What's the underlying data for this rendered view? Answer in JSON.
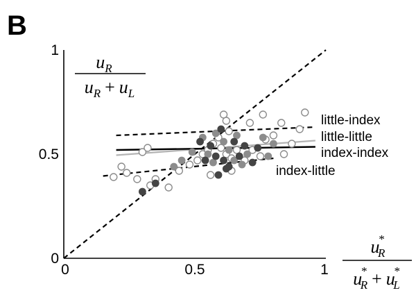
{
  "panel_label": "B",
  "chart_data": {
    "type": "scatter",
    "xlim": [
      0,
      1
    ],
    "ylim": [
      0,
      1
    ],
    "grid": false,
    "xticks": [
      {
        "value": 0,
        "label": "0"
      },
      {
        "value": 0.5,
        "label": "0.5"
      },
      {
        "value": 1,
        "label": "1"
      }
    ],
    "yticks": [
      {
        "value": 0,
        "label": "0"
      },
      {
        "value": 0.5,
        "label": "0.5"
      },
      {
        "value": 1,
        "label": "1"
      }
    ],
    "ylabel": {
      "num_var": "u",
      "num_sub": "R",
      "den_var1": "u",
      "den_sub1": "R",
      "den_op": "+",
      "den_var2": "u",
      "den_sub2": "L"
    },
    "xlabel": {
      "num_var": "u",
      "num_sub": "R",
      "num_sup": "*",
      "den_var1": "u",
      "den_sub1": "R",
      "den_sup1": "*",
      "den_op": "+",
      "den_var2": "u",
      "den_sub2": "L",
      "den_sup2": "*"
    },
    "colors": {
      "filled_dark": "#444444",
      "filled_gray": "#8c8c8c",
      "open_edge": "#8c8c8c",
      "light_line": "#b4b4b4"
    },
    "lines": [
      {
        "id": "identity",
        "style": "dashed",
        "color": "#000000",
        "x": [
          0,
          1
        ],
        "y": [
          0,
          1
        ]
      },
      {
        "id": "little-index",
        "label": "little-index",
        "style": "dashed",
        "color": "#000000",
        "x": [
          0.2,
          0.96
        ],
        "y": [
          0.59,
          0.63
        ]
      },
      {
        "id": "little-little",
        "label": "little-little",
        "style": "solid",
        "color": "#b4b4b4",
        "x": [
          0.2,
          0.96
        ],
        "y": [
          0.495,
          0.565
        ]
      },
      {
        "id": "index-index",
        "label": "index-index",
        "style": "solid",
        "color": "#000000",
        "x": [
          0.2,
          0.96
        ],
        "y": [
          0.52,
          0.535
        ]
      },
      {
        "id": "index-little",
        "label": "index-little",
        "style": "dashed",
        "color": "#000000",
        "x": [
          0.15,
          0.8
        ],
        "y": [
          0.395,
          0.48
        ]
      }
    ],
    "points": [
      {
        "x": 0.61,
        "y": 0.69,
        "kind": "open"
      },
      {
        "x": 0.62,
        "y": 0.66,
        "kind": "open"
      },
      {
        "x": 0.63,
        "y": 0.61,
        "kind": "open"
      },
      {
        "x": 0.71,
        "y": 0.65,
        "kind": "open"
      },
      {
        "x": 0.76,
        "y": 0.69,
        "kind": "open"
      },
      {
        "x": 0.83,
        "y": 0.65,
        "kind": "open"
      },
      {
        "x": 0.9,
        "y": 0.62,
        "kind": "open"
      },
      {
        "x": 0.92,
        "y": 0.7,
        "kind": "open"
      },
      {
        "x": 0.8,
        "y": 0.59,
        "kind": "open"
      },
      {
        "x": 0.77,
        "y": 0.57,
        "kind": "open"
      },
      {
        "x": 0.22,
        "y": 0.44,
        "kind": "open"
      },
      {
        "x": 0.24,
        "y": 0.41,
        "kind": "open"
      },
      {
        "x": 0.19,
        "y": 0.39,
        "kind": "open"
      },
      {
        "x": 0.28,
        "y": 0.38,
        "kind": "open"
      },
      {
        "x": 0.3,
        "y": 0.51,
        "kind": "open"
      },
      {
        "x": 0.32,
        "y": 0.53,
        "kind": "open"
      },
      {
        "x": 0.35,
        "y": 0.38,
        "kind": "open"
      },
      {
        "x": 0.33,
        "y": 0.35,
        "kind": "open"
      },
      {
        "x": 0.4,
        "y": 0.34,
        "kind": "open"
      },
      {
        "x": 0.44,
        "y": 0.42,
        "kind": "open"
      },
      {
        "x": 0.48,
        "y": 0.45,
        "kind": "open"
      },
      {
        "x": 0.51,
        "y": 0.47,
        "kind": "open"
      },
      {
        "x": 0.53,
        "y": 0.5,
        "kind": "open"
      },
      {
        "x": 0.55,
        "y": 0.52,
        "kind": "open"
      },
      {
        "x": 0.57,
        "y": 0.55,
        "kind": "open"
      },
      {
        "x": 0.59,
        "y": 0.58,
        "kind": "open"
      },
      {
        "x": 0.6,
        "y": 0.53,
        "kind": "open"
      },
      {
        "x": 0.62,
        "y": 0.5,
        "kind": "open"
      },
      {
        "x": 0.64,
        "y": 0.48,
        "kind": "open"
      },
      {
        "x": 0.66,
        "y": 0.52,
        "kind": "open"
      },
      {
        "x": 0.69,
        "y": 0.47,
        "kind": "open"
      },
      {
        "x": 0.72,
        "y": 0.52,
        "kind": "open"
      },
      {
        "x": 0.75,
        "y": 0.49,
        "kind": "open"
      },
      {
        "x": 0.84,
        "y": 0.5,
        "kind": "open"
      },
      {
        "x": 0.87,
        "y": 0.55,
        "kind": "open"
      },
      {
        "x": 0.64,
        "y": 0.42,
        "kind": "open"
      },
      {
        "x": 0.56,
        "y": 0.4,
        "kind": "open"
      },
      {
        "x": 0.3,
        "y": 0.32,
        "kind": "filled_dark"
      },
      {
        "x": 0.35,
        "y": 0.36,
        "kind": "filled_dark"
      },
      {
        "x": 0.52,
        "y": 0.56,
        "kind": "filled_dark"
      },
      {
        "x": 0.54,
        "y": 0.47,
        "kind": "filled_dark"
      },
      {
        "x": 0.56,
        "y": 0.54,
        "kind": "filled_dark"
      },
      {
        "x": 0.58,
        "y": 0.49,
        "kind": "filled_dark"
      },
      {
        "x": 0.6,
        "y": 0.62,
        "kind": "filled_dark"
      },
      {
        "x": 0.61,
        "y": 0.47,
        "kind": "filled_dark"
      },
      {
        "x": 0.63,
        "y": 0.44,
        "kind": "filled_dark"
      },
      {
        "x": 0.65,
        "y": 0.56,
        "kind": "filled_dark"
      },
      {
        "x": 0.67,
        "y": 0.49,
        "kind": "filled_dark"
      },
      {
        "x": 0.69,
        "y": 0.54,
        "kind": "filled_dark"
      },
      {
        "x": 0.72,
        "y": 0.46,
        "kind": "filled_dark"
      },
      {
        "x": 0.74,
        "y": 0.53,
        "kind": "filled_dark"
      },
      {
        "x": 0.59,
        "y": 0.4,
        "kind": "filled_dark"
      },
      {
        "x": 0.62,
        "y": 0.43,
        "kind": "filled_dark"
      },
      {
        "x": 0.49,
        "y": 0.51,
        "kind": "filled_gray"
      },
      {
        "x": 0.53,
        "y": 0.58,
        "kind": "filled_gray"
      },
      {
        "x": 0.55,
        "y": 0.5,
        "kind": "filled_gray"
      },
      {
        "x": 0.57,
        "y": 0.46,
        "kind": "filled_gray"
      },
      {
        "x": 0.58,
        "y": 0.6,
        "kind": "filled_gray"
      },
      {
        "x": 0.61,
        "y": 0.56,
        "kind": "filled_gray"
      },
      {
        "x": 0.63,
        "y": 0.52,
        "kind": "filled_gray"
      },
      {
        "x": 0.65,
        "y": 0.47,
        "kind": "filled_gray"
      },
      {
        "x": 0.66,
        "y": 0.59,
        "kind": "filled_gray"
      },
      {
        "x": 0.68,
        "y": 0.45,
        "kind": "filled_gray"
      },
      {
        "x": 0.7,
        "y": 0.5,
        "kind": "filled_gray"
      },
      {
        "x": 0.76,
        "y": 0.58,
        "kind": "filled_gray"
      },
      {
        "x": 0.78,
        "y": 0.49,
        "kind": "filled_gray"
      },
      {
        "x": 0.8,
        "y": 0.55,
        "kind": "filled_gray"
      },
      {
        "x": 0.45,
        "y": 0.47,
        "kind": "filled_gray"
      },
      {
        "x": 0.42,
        "y": 0.44,
        "kind": "filled_gray"
      }
    ]
  }
}
